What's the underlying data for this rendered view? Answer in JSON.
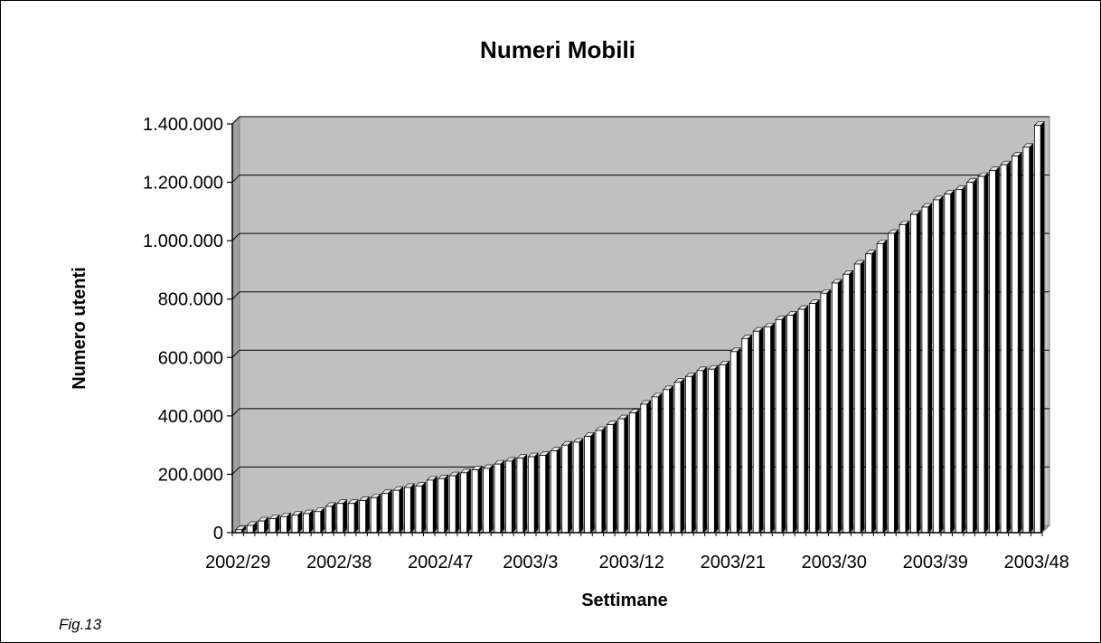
{
  "figure": {
    "caption": "Fig.13"
  },
  "colors": {
    "plot_background": "#c0c0c0",
    "bar_front": "#ffffff",
    "bar_side": "#000000",
    "bar_top": "#e6e6e6",
    "gridline": "#000000"
  },
  "chart_data": {
    "type": "bar",
    "title": "Numeri Mobili",
    "xlabel": "Settimane",
    "ylabel": "Numero utenti",
    "ylim": [
      0,
      1400000
    ],
    "yticks": [
      0,
      200000,
      400000,
      600000,
      800000,
      1000000,
      1200000,
      1400000
    ],
    "ytick_labels": [
      "0",
      "200.000",
      "400.000",
      "600.000",
      "800.000",
      "1.000.000",
      "1.200.000",
      "1.400.000"
    ],
    "xtick_labels": [
      "2002/29",
      "2002/38",
      "2002/47",
      "2003/3",
      "2003/12",
      "2003/21",
      "2003/30",
      "2003/39",
      "2003/48"
    ],
    "grid": true,
    "legend": "none",
    "categories": [
      "2002/29",
      "2002/30",
      "2002/31",
      "2002/32",
      "2002/33",
      "2002/34",
      "2002/35",
      "2002/36",
      "2002/37",
      "2002/38",
      "2002/39",
      "2002/40",
      "2002/41",
      "2002/42",
      "2002/43",
      "2002/44",
      "2002/45",
      "2002/46",
      "2002/47",
      "2002/48",
      "2002/49",
      "2002/50",
      "2002/51",
      "2002/52",
      "2003/1",
      "2003/2",
      "2003/3",
      "2003/4",
      "2003/5",
      "2003/6",
      "2003/7",
      "2003/8",
      "2003/9",
      "2003/10",
      "2003/11",
      "2003/12",
      "2003/13",
      "2003/14",
      "2003/15",
      "2003/16",
      "2003/17",
      "2003/18",
      "2003/19",
      "2003/20",
      "2003/21",
      "2003/22",
      "2003/23",
      "2003/24",
      "2003/25",
      "2003/26",
      "2003/27",
      "2003/28",
      "2003/29",
      "2003/30",
      "2003/31",
      "2003/32",
      "2003/33",
      "2003/34",
      "2003/35",
      "2003/36",
      "2003/37",
      "2003/38",
      "2003/39",
      "2003/40",
      "2003/41",
      "2003/42",
      "2003/43",
      "2003/44",
      "2003/45",
      "2003/46",
      "2003/47",
      "2003/48"
    ],
    "values": [
      10000,
      25000,
      40000,
      48000,
      55000,
      60000,
      65000,
      72000,
      90000,
      100000,
      100000,
      110000,
      120000,
      135000,
      145000,
      155000,
      160000,
      180000,
      185000,
      195000,
      205000,
      215000,
      220000,
      235000,
      245000,
      255000,
      260000,
      265000,
      280000,
      300000,
      310000,
      330000,
      350000,
      370000,
      390000,
      410000,
      440000,
      465000,
      490000,
      515000,
      535000,
      555000,
      560000,
      575000,
      620000,
      665000,
      690000,
      705000,
      730000,
      745000,
      765000,
      785000,
      820000,
      855000,
      885000,
      920000,
      955000,
      990000,
      1025000,
      1055000,
      1090000,
      1115000,
      1140000,
      1160000,
      1175000,
      1200000,
      1220000,
      1240000,
      1260000,
      1290000,
      1320000,
      1395000
    ]
  }
}
